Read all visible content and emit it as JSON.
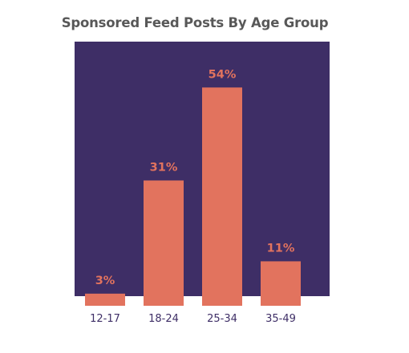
{
  "chart_data": {
    "type": "bar",
    "title": "Sponsored Feed Posts By Age Group",
    "categories": [
      "12-17",
      "18-24",
      "25-34",
      "35-49"
    ],
    "values": [
      3,
      31,
      54,
      11
    ],
    "value_labels": [
      "3%",
      "31%",
      "54%",
      "11%"
    ],
    "unit": "%",
    "grid": false,
    "legend": "none"
  },
  "colors": {
    "background_panel": "#3e2e66",
    "bar": "#e2735e",
    "value_label": "#e2735e",
    "category_label": "#3e2e66",
    "title": "#585858"
  }
}
